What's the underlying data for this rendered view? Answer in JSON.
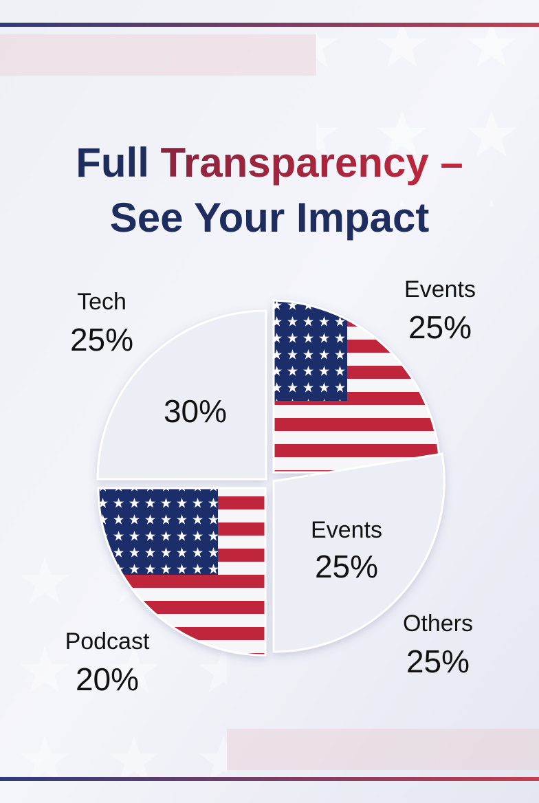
{
  "title": {
    "part1": "Full",
    "part2": "Transparency –",
    "line2": "See Your Impact"
  },
  "labels": [
    {
      "name": "Tech",
      "value": "25%"
    },
    {
      "value": "30%"
    },
    {
      "name": "Events",
      "value": "25%"
    },
    {
      "name": "Events",
      "value": "25%"
    },
    {
      "name": "Others",
      "value": "25%"
    },
    {
      "name": "Podcast",
      "value": "20%"
    }
  ]
}
